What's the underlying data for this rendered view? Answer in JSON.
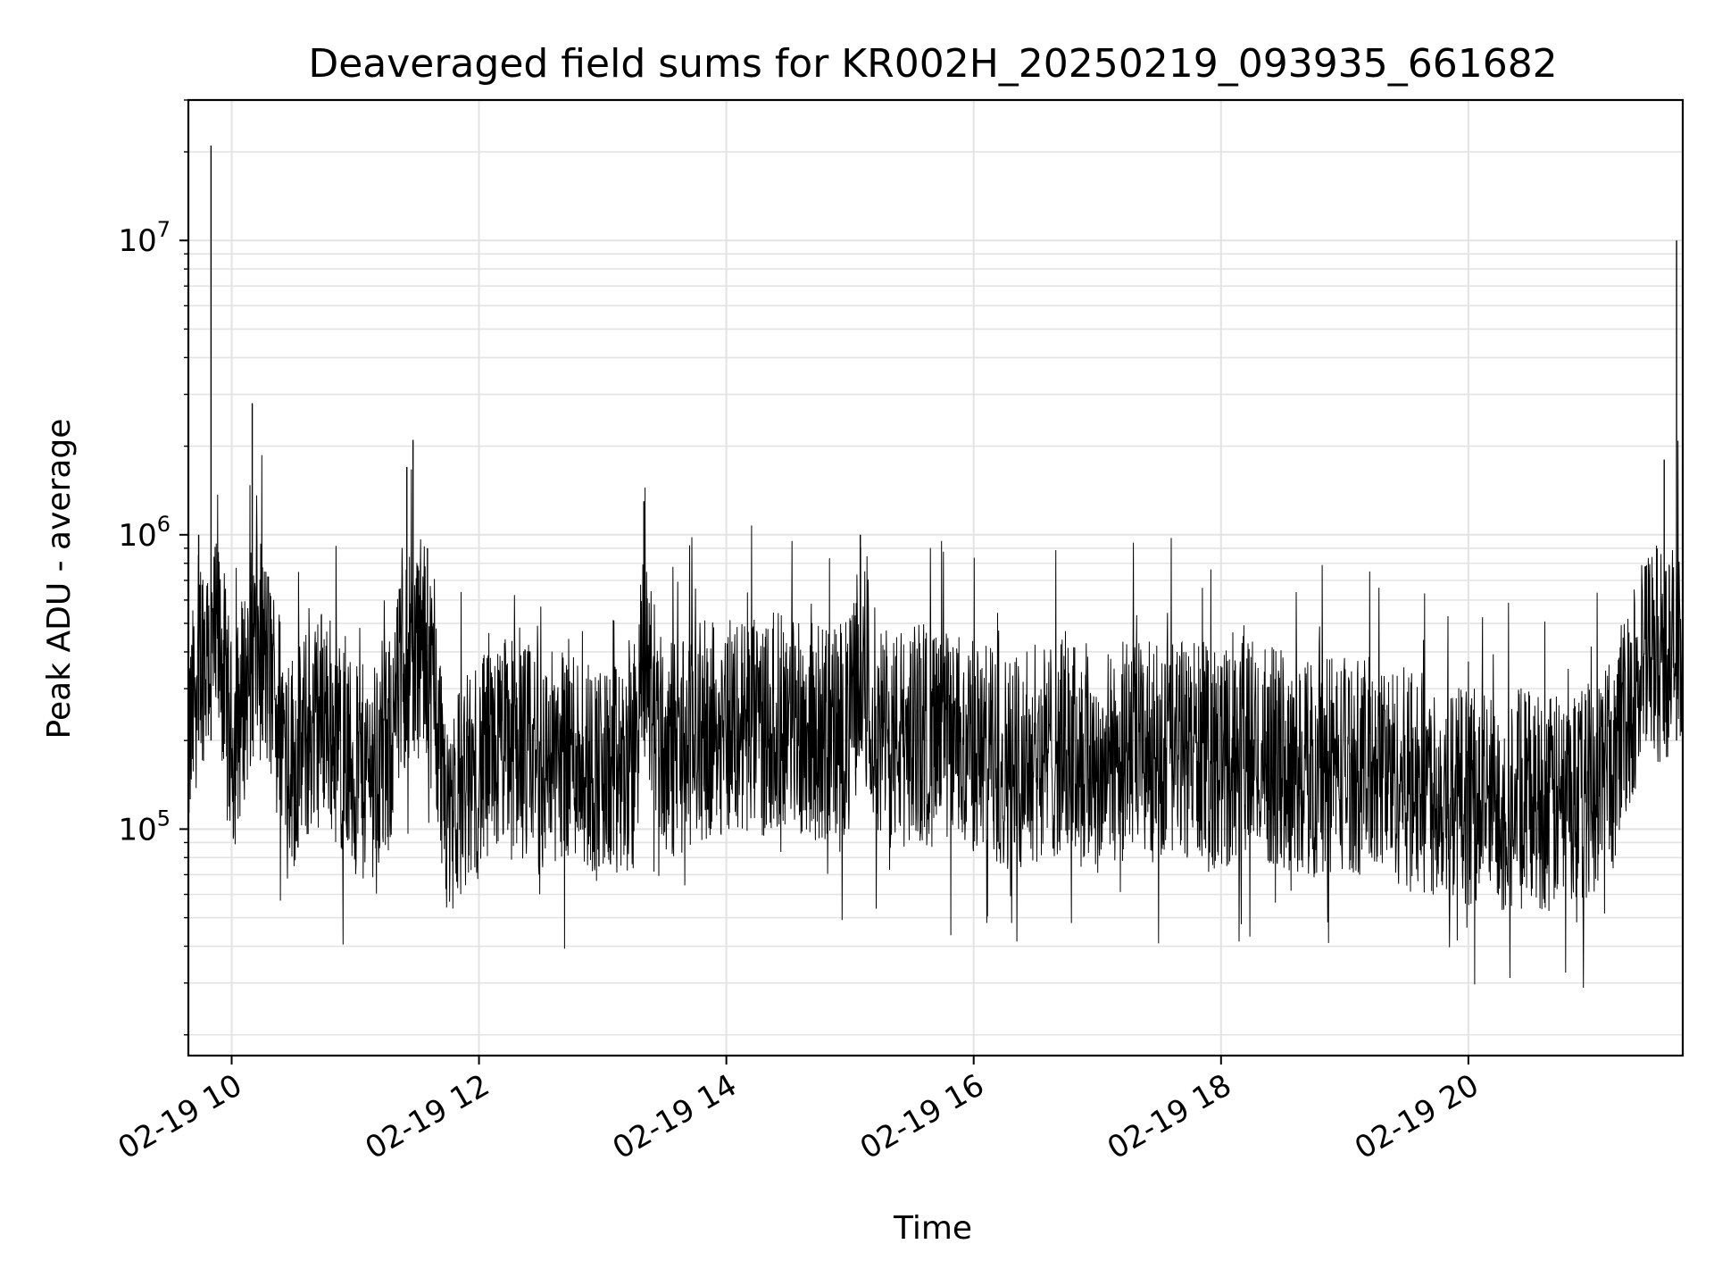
{
  "chart_data": {
    "type": "line",
    "title": "Deaveraged field sums for KR002H_20250219_093935_661682",
    "xlabel": "Time",
    "ylabel": "Peak ADU - average",
    "x_range": [
      "2025-02-19 09:39",
      "2025-02-19 21:44"
    ],
    "x_ticks": [
      "02-19 10",
      "02-19 12",
      "02-19 14",
      "02-19 16",
      "02-19 18",
      "02-19 20"
    ],
    "y_scale": "log",
    "y_range": [
      17000,
      30000000
    ],
    "y_ticks": [
      {
        "value": 100000,
        "base": "10",
        "exp": "5"
      },
      {
        "value": 1000000,
        "base": "10",
        "exp": "6"
      },
      {
        "value": 10000000,
        "base": "10",
        "exp": "7"
      }
    ],
    "grid": true,
    "line_color": "#000000",
    "series": [
      {
        "points": [
          [
            "09:40",
            200000
          ],
          [
            "09:44",
            1000000
          ],
          [
            "09:50",
            21000000
          ],
          [
            "09:55",
            500000
          ],
          [
            "10:00",
            180000
          ],
          [
            "10:10",
            2800000
          ],
          [
            "10:15",
            600000
          ],
          [
            "10:30",
            170000
          ],
          [
            "10:45",
            260000
          ],
          [
            "11:00",
            150000
          ],
          [
            "11:15",
            170000
          ],
          [
            "11:25",
            1700000
          ],
          [
            "11:28",
            2100000
          ],
          [
            "11:35",
            900000
          ],
          [
            "11:45",
            120000
          ],
          [
            "12:00",
            160000
          ],
          [
            "12:15",
            200000
          ],
          [
            "12:30",
            170000
          ],
          [
            "12:45",
            190000
          ],
          [
            "13:00",
            150000
          ],
          [
            "13:15",
            160000
          ],
          [
            "13:20",
            1300000
          ],
          [
            "13:30",
            180000
          ],
          [
            "13:45",
            210000
          ],
          [
            "14:00",
            230000
          ],
          [
            "14:15",
            220000
          ],
          [
            "14:30",
            240000
          ],
          [
            "14:45",
            210000
          ],
          [
            "15:00",
            220000
          ],
          [
            "15:05",
            1000000
          ],
          [
            "15:15",
            200000
          ],
          [
            "15:30",
            210000
          ],
          [
            "15:45",
            200000
          ],
          [
            "16:00",
            190000
          ],
          [
            "16:15",
            170000
          ],
          [
            "16:30",
            180000
          ],
          [
            "16:45",
            190000
          ],
          [
            "17:00",
            160000
          ],
          [
            "17:15",
            190000
          ],
          [
            "17:30",
            180000
          ],
          [
            "17:45",
            190000
          ],
          [
            "18:00",
            170000
          ],
          [
            "18:15",
            190000
          ],
          [
            "18:30",
            170000
          ],
          [
            "18:45",
            160000
          ],
          [
            "19:00",
            170000
          ],
          [
            "19:15",
            160000
          ],
          [
            "19:30",
            150000
          ],
          [
            "19:45",
            140000
          ],
          [
            "20:00",
            130000
          ],
          [
            "20:15",
            120000
          ],
          [
            "20:30",
            130000
          ],
          [
            "20:45",
            120000
          ],
          [
            "21:00",
            140000
          ],
          [
            "21:10",
            170000
          ],
          [
            "21:20",
            300000
          ],
          [
            "21:30",
            600000
          ],
          [
            "21:35",
            1800000
          ],
          [
            "21:40",
            450000
          ],
          [
            "21:41",
            10000000
          ],
          [
            "21:44",
            500000
          ]
        ]
      }
    ]
  }
}
